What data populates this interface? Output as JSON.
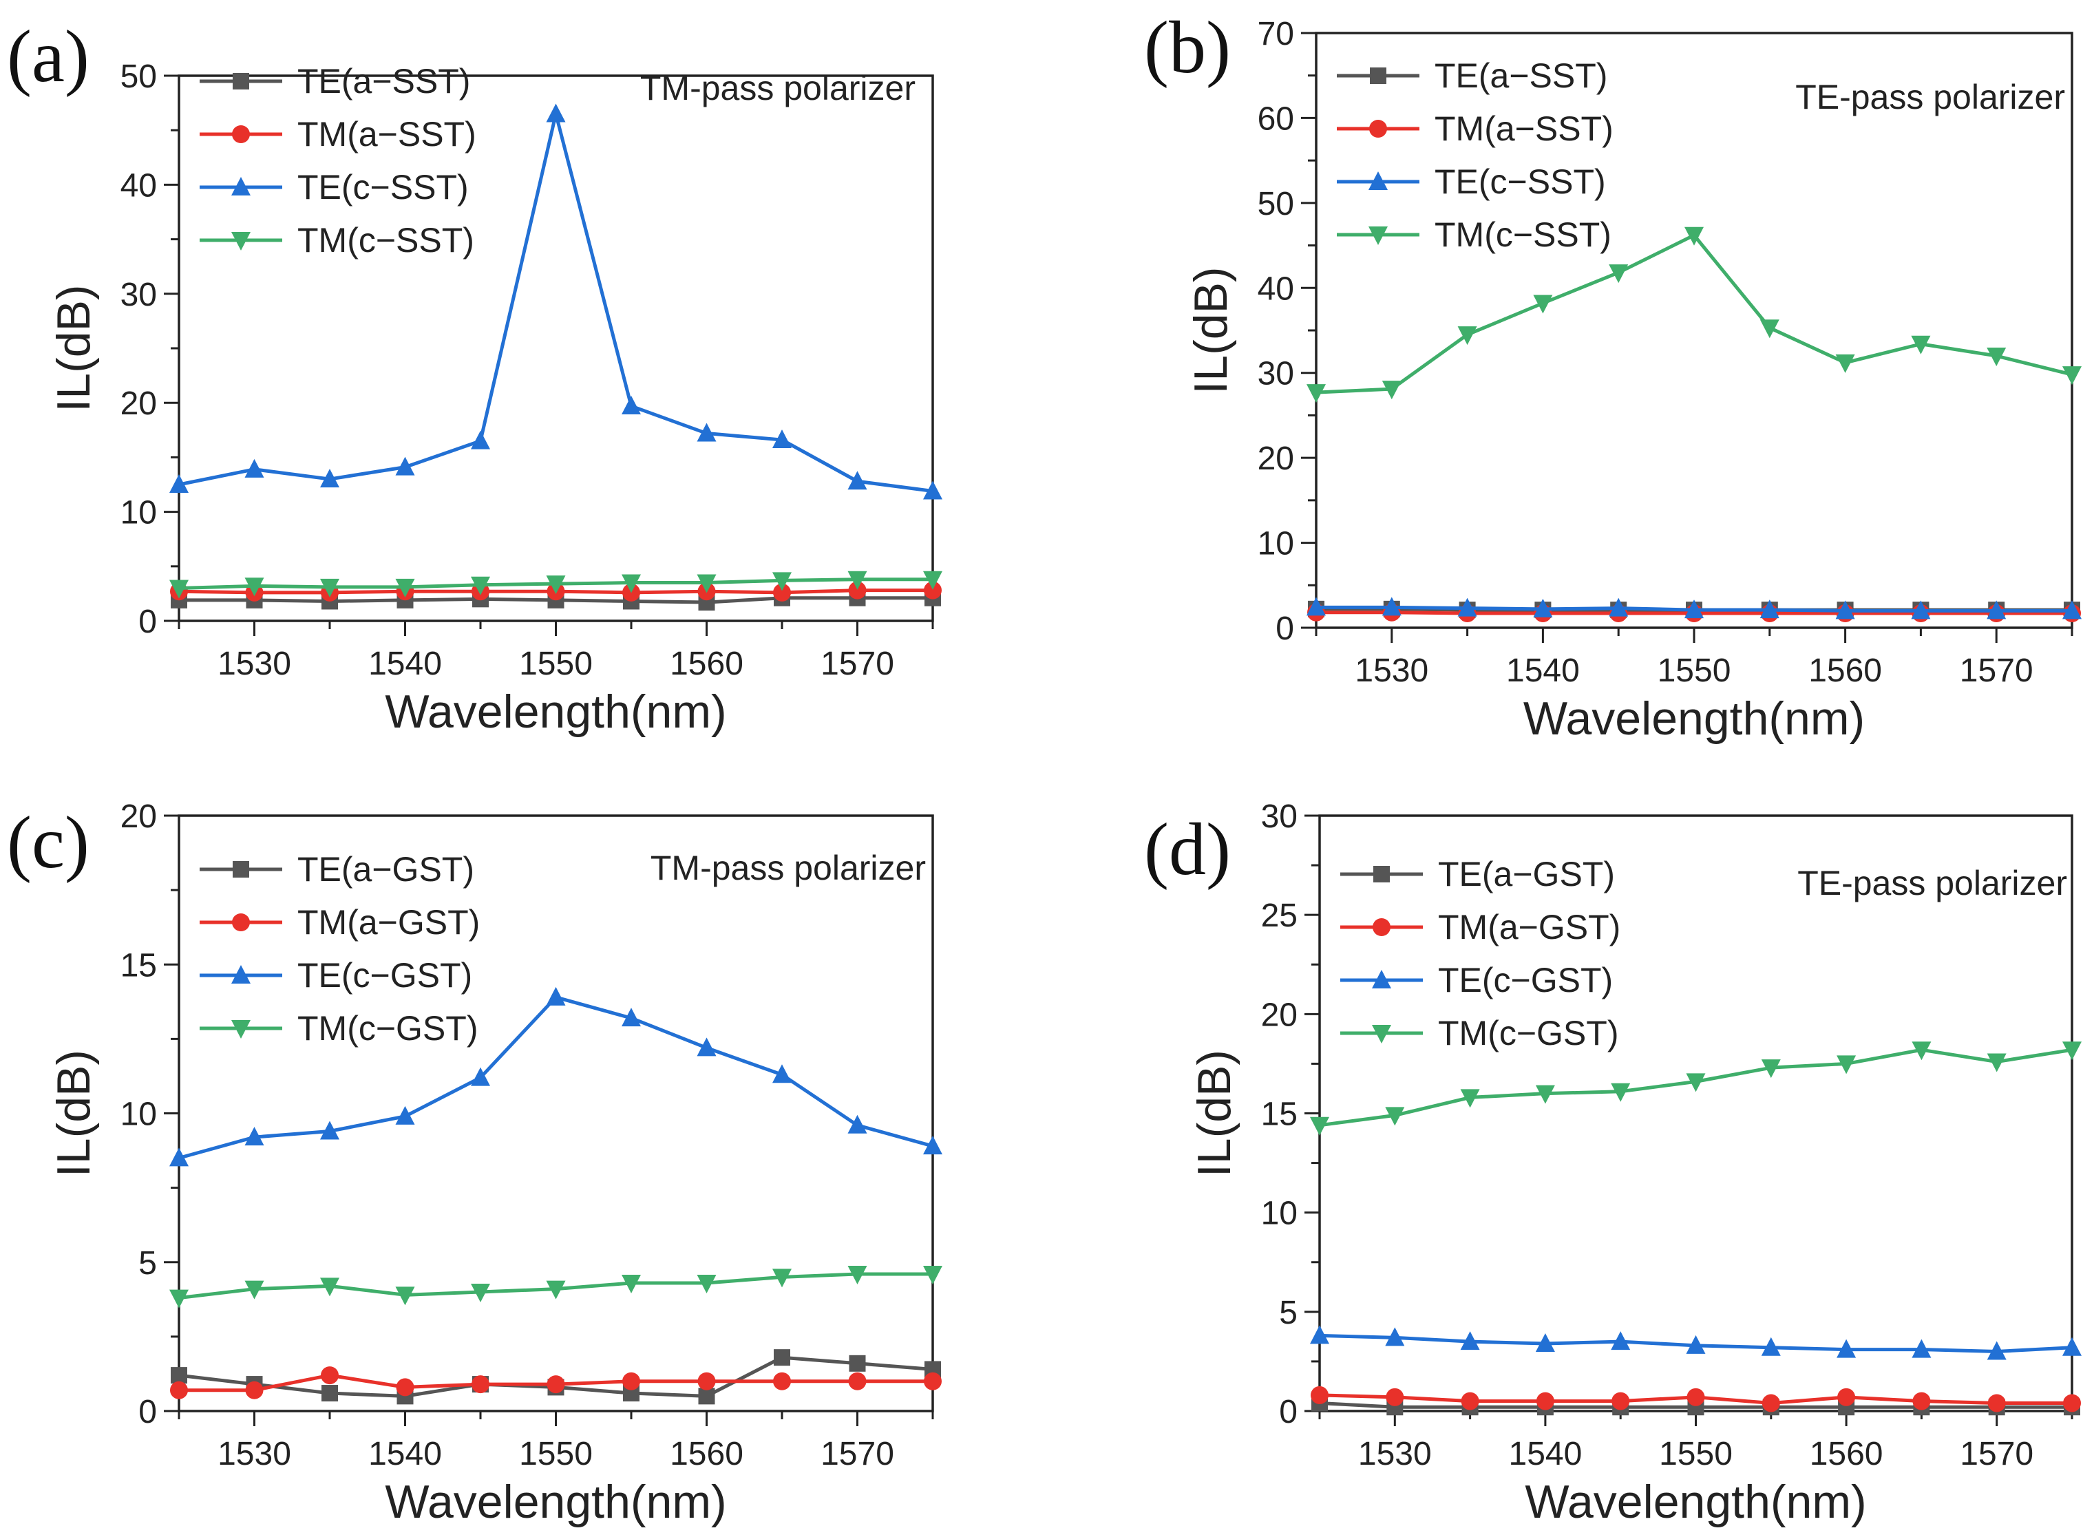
{
  "colors": {
    "TE_a": "#555555",
    "TM_a": "#e8312a",
    "TE_c": "#2270d4",
    "TM_c": "#3fae6a"
  },
  "chart_data": [
    {
      "type": "line",
      "panel": "(a)",
      "annotation": "TM-pass polarizer",
      "xlabel": "Wavelength(nm)",
      "ylabel": "IL(dB)",
      "xlim": [
        1525,
        1575
      ],
      "ylim": [
        0,
        50
      ],
      "xticks": [
        1530,
        1540,
        1550,
        1560,
        1570
      ],
      "yticks": [
        0,
        10,
        20,
        30,
        40,
        50
      ],
      "legend_position": "top-left",
      "x": [
        1525,
        1530,
        1535,
        1540,
        1545,
        1550,
        1555,
        1560,
        1565,
        1570,
        1575
      ],
      "series": [
        {
          "name": "TE(a−SST)",
          "color_key": "TE_a",
          "marker": "square",
          "values": [
            1.9,
            1.9,
            1.8,
            1.9,
            2.0,
            1.9,
            1.8,
            1.7,
            2.1,
            2.1,
            2.1
          ]
        },
        {
          "name": "TM(a−SST)",
          "color_key": "TM_a",
          "marker": "circle",
          "values": [
            2.7,
            2.6,
            2.6,
            2.7,
            2.7,
            2.7,
            2.6,
            2.7,
            2.6,
            2.8,
            2.8
          ]
        },
        {
          "name": "TE(c−SST)",
          "color_key": "TE_c",
          "marker": "triangle-up",
          "values": [
            12.5,
            13.9,
            13.0,
            14.1,
            16.5,
            46.5,
            19.7,
            17.2,
            16.6,
            12.8,
            11.9
          ]
        },
        {
          "name": "TM(c−SST)",
          "color_key": "TM_c",
          "marker": "triangle-down",
          "values": [
            3.0,
            3.2,
            3.1,
            3.1,
            3.3,
            3.4,
            3.5,
            3.5,
            3.7,
            3.8,
            3.8
          ]
        }
      ]
    },
    {
      "type": "line",
      "panel": "(b)",
      "annotation": "TE-pass polarizer",
      "xlabel": "Wavelength(nm)",
      "ylabel": "IL(dB)",
      "xlim": [
        1525,
        1575
      ],
      "ylim": [
        0,
        70
      ],
      "xticks": [
        1530,
        1540,
        1550,
        1560,
        1570
      ],
      "yticks": [
        0,
        10,
        20,
        30,
        40,
        50,
        60,
        70
      ],
      "legend_position": "top-left",
      "x": [
        1525,
        1530,
        1535,
        1540,
        1545,
        1550,
        1555,
        1560,
        1565,
        1570,
        1575
      ],
      "series": [
        {
          "name": "TE(a−SST)",
          "color_key": "TE_a",
          "marker": "square",
          "values": [
            2.2,
            2.2,
            2.1,
            2.1,
            2.1,
            2.1,
            2.1,
            2.1,
            2.1,
            2.1,
            2.1
          ]
        },
        {
          "name": "TM(a−SST)",
          "color_key": "TM_a",
          "marker": "circle",
          "values": [
            1.8,
            1.8,
            1.7,
            1.7,
            1.7,
            1.7,
            1.7,
            1.7,
            1.7,
            1.7,
            1.7
          ]
        },
        {
          "name": "TE(c−SST)",
          "color_key": "TE_c",
          "marker": "triangle-up",
          "values": [
            2.4,
            2.4,
            2.3,
            2.2,
            2.3,
            2.1,
            2.1,
            2.0,
            2.0,
            2.0,
            2.0
          ]
        },
        {
          "name": "TM(c−SST)",
          "color_key": "TM_c",
          "marker": "triangle-down",
          "values": [
            27.7,
            28.1,
            34.5,
            38.2,
            41.8,
            46.2,
            35.3,
            31.2,
            33.4,
            32.0,
            29.8
          ]
        }
      ]
    },
    {
      "type": "line",
      "panel": "(c)",
      "annotation": "TM-pass polarizer",
      "xlabel": "Wavelength(nm)",
      "ylabel": "IL(dB)",
      "xlim": [
        1525,
        1575
      ],
      "ylim": [
        0,
        20
      ],
      "xticks": [
        1530,
        1540,
        1550,
        1560,
        1570
      ],
      "yticks": [
        0,
        5,
        10,
        15,
        20
      ],
      "legend_position": "top-left",
      "x": [
        1525,
        1530,
        1535,
        1540,
        1545,
        1550,
        1555,
        1560,
        1565,
        1570,
        1575
      ],
      "series": [
        {
          "name": "TE(a−GST)",
          "color_key": "TE_a",
          "marker": "square",
          "values": [
            1.2,
            0.9,
            0.6,
            0.5,
            0.9,
            0.8,
            0.6,
            0.5,
            1.8,
            1.6,
            1.4
          ]
        },
        {
          "name": "TM(a−GST)",
          "color_key": "TM_a",
          "marker": "circle",
          "values": [
            0.7,
            0.7,
            1.2,
            0.8,
            0.9,
            0.9,
            1.0,
            1.0,
            1.0,
            1.0,
            1.0
          ]
        },
        {
          "name": "TE(c−GST)",
          "color_key": "TE_c",
          "marker": "triangle-up",
          "values": [
            8.5,
            9.2,
            9.4,
            9.9,
            11.2,
            13.9,
            13.2,
            12.2,
            11.3,
            9.6,
            8.9
          ]
        },
        {
          "name": "TM(c−GST)",
          "color_key": "TM_c",
          "marker": "triangle-down",
          "values": [
            3.8,
            4.1,
            4.2,
            3.9,
            4.0,
            4.1,
            4.3,
            4.3,
            4.5,
            4.6,
            4.6
          ]
        }
      ]
    },
    {
      "type": "line",
      "panel": "(d)",
      "annotation": "TE-pass polarizer",
      "xlabel": "Wavelength(nm)",
      "ylabel": "IL(dB)",
      "xlim": [
        1525,
        1575
      ],
      "ylim": [
        0,
        30
      ],
      "xticks": [
        1530,
        1540,
        1550,
        1560,
        1570
      ],
      "yticks": [
        0,
        5,
        10,
        15,
        20,
        25,
        30
      ],
      "legend_position": "top-left",
      "x": [
        1525,
        1530,
        1535,
        1540,
        1545,
        1550,
        1555,
        1560,
        1565,
        1570,
        1575
      ],
      "series": [
        {
          "name": "TE(a−GST)",
          "color_key": "TE_a",
          "marker": "square",
          "values": [
            0.4,
            0.2,
            0.2,
            0.2,
            0.2,
            0.2,
            0.2,
            0.2,
            0.2,
            0.2,
            0.2
          ]
        },
        {
          "name": "TM(a−GST)",
          "color_key": "TM_a",
          "marker": "circle",
          "values": [
            0.8,
            0.7,
            0.5,
            0.5,
            0.5,
            0.7,
            0.4,
            0.7,
            0.5,
            0.4,
            0.4
          ]
        },
        {
          "name": "TE(c−GST)",
          "color_key": "TE_c",
          "marker": "triangle-up",
          "values": [
            3.8,
            3.7,
            3.5,
            3.4,
            3.5,
            3.3,
            3.2,
            3.1,
            3.1,
            3.0,
            3.2
          ]
        },
        {
          "name": "TM(c−GST)",
          "color_key": "TM_c",
          "marker": "triangle-down",
          "values": [
            14.4,
            14.9,
            15.8,
            16.0,
            16.1,
            16.6,
            17.3,
            17.5,
            18.2,
            17.6,
            18.2
          ]
        }
      ]
    }
  ]
}
